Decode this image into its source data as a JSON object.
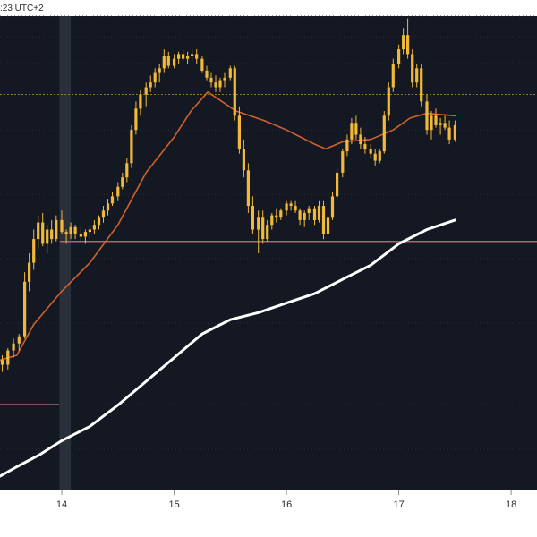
{
  "header": {
    "timestamp_text": ":23 UTC+2"
  },
  "chart_data": {
    "type": "candlestick",
    "title": "",
    "xlabel": "",
    "ylabel": "",
    "xlim": [
      13.45,
      18.23
    ],
    "ylim": [
      0,
      100
    ],
    "x_ticks": [
      {
        "label": "14",
        "value": 14.0
      },
      {
        "label": "15",
        "value": 15.0
      },
      {
        "label": "16",
        "value": 16.0
      },
      {
        "label": "17",
        "value": 17.0
      },
      {
        "label": "18",
        "value": 18.0
      }
    ],
    "colors": {
      "background": "#141823",
      "bar_top_bg": "#ffffff",
      "candle": "#f0b93a",
      "ma_short": "#d2622a",
      "ma_long": "#ffffff",
      "grid": "#2a2f3c",
      "highlight_band": "#2a2f3c",
      "hline_orange_dotted": "#9a7a2a",
      "hline_pink": "#a46a74"
    },
    "highlight_band": [
      13.98,
      14.08
    ],
    "horizontal_lines": [
      {
        "style": "dotted-orange",
        "y": 83.5
      },
      {
        "style": "solid-pink",
        "y": 52.5
      }
    ],
    "series": [
      {
        "kind": "ohlc",
        "points": [
          [
            13.47,
            27.5,
            28.5,
            25.0,
            26.5
          ],
          [
            13.52,
            26.5,
            30.0,
            25.5,
            29.5
          ],
          [
            13.57,
            29.5,
            32.0,
            28.0,
            31.0
          ],
          [
            13.62,
            31.0,
            33.0,
            29.5,
            32.5
          ],
          [
            13.67,
            32.5,
            46.0,
            32.0,
            44.0
          ],
          [
            13.71,
            44.0,
            50.0,
            42.0,
            48.0
          ],
          [
            13.75,
            48.0,
            55.0,
            46.5,
            53.0
          ],
          [
            13.79,
            53.0,
            58.0,
            51.0,
            56.5
          ],
          [
            13.83,
            56.5,
            58.5,
            51.5,
            52.0
          ],
          [
            13.87,
            52.0,
            56.0,
            50.0,
            55.0
          ],
          [
            13.91,
            55.0,
            57.0,
            52.0,
            53.0
          ],
          [
            13.95,
            53.0,
            58.0,
            52.5,
            57.0
          ],
          [
            14.0,
            57.0,
            59.0,
            54.0,
            54.5
          ],
          [
            14.04,
            54.5,
            55.0,
            52.0,
            54.0
          ],
          [
            14.08,
            54.0,
            56.5,
            53.0,
            55.5
          ],
          [
            14.12,
            55.5,
            56.0,
            53.0,
            54.0
          ],
          [
            14.17,
            54.0,
            55.5,
            52.5,
            53.5
          ],
          [
            14.21,
            53.5,
            55.0,
            52.0,
            54.5
          ],
          [
            14.25,
            54.5,
            56.0,
            53.0,
            55.0
          ],
          [
            14.29,
            55.0,
            57.0,
            54.0,
            56.0
          ],
          [
            14.33,
            56.0,
            58.0,
            55.0,
            57.5
          ],
          [
            14.37,
            57.5,
            60.0,
            56.5,
            59.0
          ],
          [
            14.41,
            59.0,
            61.5,
            58.0,
            60.5
          ],
          [
            14.45,
            60.5,
            63.0,
            60.0,
            62.0
          ],
          [
            14.5,
            62.0,
            65.0,
            61.0,
            64.0
          ],
          [
            14.54,
            64.0,
            67.0,
            63.5,
            66.0
          ],
          [
            14.58,
            66.0,
            70.0,
            65.0,
            69.0
          ],
          [
            14.62,
            69.0,
            77.0,
            68.0,
            76.0
          ],
          [
            14.66,
            76.0,
            82.0,
            75.0,
            80.5
          ],
          [
            14.7,
            80.5,
            84.5,
            79.0,
            83.5
          ],
          [
            14.75,
            83.5,
            86.0,
            81.0,
            85.0
          ],
          [
            14.79,
            85.0,
            87.5,
            84.0,
            86.0
          ],
          [
            14.83,
            86.0,
            89.0,
            85.0,
            88.0
          ],
          [
            14.87,
            88.0,
            90.0,
            86.0,
            89.0
          ],
          [
            14.91,
            89.0,
            93.0,
            88.0,
            91.5
          ],
          [
            14.95,
            91.5,
            92.5,
            89.0,
            89.5
          ],
          [
            15.0,
            89.5,
            92.0,
            89.0,
            91.0
          ],
          [
            15.04,
            91.0,
            92.5,
            90.0,
            92.0
          ],
          [
            15.08,
            92.0,
            93.0,
            90.5,
            91.0
          ],
          [
            15.12,
            91.0,
            92.5,
            90.0,
            91.5
          ],
          [
            15.16,
            91.5,
            93.0,
            90.5,
            92.0
          ],
          [
            15.2,
            92.0,
            93.0,
            90.0,
            91.0
          ],
          [
            15.25,
            91.0,
            91.5,
            88.0,
            88.5
          ],
          [
            15.29,
            88.5,
            89.5,
            86.5,
            87.0
          ],
          [
            15.33,
            87.0,
            88.0,
            85.0,
            86.0
          ],
          [
            15.37,
            86.0,
            87.5,
            84.0,
            85.0
          ],
          [
            15.41,
            85.0,
            87.0,
            84.0,
            86.5
          ],
          [
            15.45,
            86.5,
            88.0,
            85.0,
            87.0
          ],
          [
            15.5,
            87.0,
            89.5,
            86.5,
            89.0
          ],
          [
            15.54,
            89.0,
            89.5,
            78.0,
            79.0
          ],
          [
            15.58,
            79.0,
            81.0,
            71.0,
            72.0
          ],
          [
            15.62,
            72.0,
            74.0,
            66.0,
            67.5
          ],
          [
            15.66,
            67.5,
            69.0,
            58.5,
            60.0
          ],
          [
            15.7,
            60.0,
            62.0,
            54.0,
            55.0
          ],
          [
            15.75,
            55.0,
            59.0,
            50.0,
            57.5
          ],
          [
            15.79,
            57.5,
            59.0,
            52.0,
            53.0
          ],
          [
            15.83,
            53.0,
            57.0,
            52.5,
            56.0
          ],
          [
            15.87,
            56.0,
            58.5,
            55.0,
            58.0
          ],
          [
            15.91,
            58.0,
            59.5,
            56.5,
            57.5
          ],
          [
            15.95,
            57.5,
            59.5,
            57.0,
            59.0
          ],
          [
            16.0,
            59.0,
            61.0,
            58.0,
            60.5
          ],
          [
            16.04,
            60.5,
            61.0,
            59.0,
            60.0
          ],
          [
            16.08,
            60.0,
            61.0,
            58.5,
            59.0
          ],
          [
            16.12,
            59.0,
            59.5,
            56.0,
            57.0
          ],
          [
            16.16,
            57.0,
            59.0,
            55.5,
            58.5
          ],
          [
            16.2,
            58.5,
            60.0,
            57.0,
            59.5
          ],
          [
            16.25,
            59.5,
            60.0,
            56.0,
            57.0
          ],
          [
            16.29,
            57.0,
            61.0,
            56.5,
            60.0
          ],
          [
            16.33,
            60.0,
            61.0,
            53.0,
            54.0
          ],
          [
            16.37,
            54.0,
            58.0,
            53.5,
            57.5
          ],
          [
            16.41,
            57.5,
            63.0,
            57.0,
            62.0
          ],
          [
            16.45,
            62.0,
            68.0,
            61.5,
            67.0
          ],
          [
            16.5,
            67.0,
            72.0,
            66.0,
            71.5
          ],
          [
            16.54,
            71.5,
            75.0,
            70.5,
            74.0
          ],
          [
            16.58,
            74.0,
            78.5,
            73.0,
            77.5
          ],
          [
            16.62,
            77.5,
            79.0,
            74.0,
            75.0
          ],
          [
            16.66,
            75.0,
            76.5,
            72.0,
            73.0
          ],
          [
            16.7,
            73.0,
            74.5,
            71.0,
            72.0
          ],
          [
            16.75,
            72.0,
            73.0,
            70.0,
            71.0
          ],
          [
            16.79,
            71.0,
            72.0,
            68.5,
            69.5
          ],
          [
            16.83,
            69.5,
            72.0,
            69.0,
            71.5
          ],
          [
            16.87,
            71.5,
            80.0,
            71.0,
            79.0
          ],
          [
            16.91,
            79.0,
            86.0,
            78.0,
            85.0
          ],
          [
            16.95,
            85.0,
            91.0,
            84.0,
            90.0
          ],
          [
            17.0,
            90.0,
            94.0,
            89.0,
            93.0
          ],
          [
            17.04,
            93.0,
            97.5,
            92.0,
            96.0
          ],
          [
            17.08,
            96.0,
            99.5,
            91.0,
            92.0
          ],
          [
            17.12,
            92.0,
            93.0,
            85.0,
            86.0
          ],
          [
            17.16,
            86.0,
            90.0,
            85.0,
            89.0
          ],
          [
            17.2,
            89.0,
            90.0,
            81.0,
            82.0
          ],
          [
            17.25,
            82.0,
            83.5,
            75.0,
            76.0
          ],
          [
            17.29,
            76.0,
            80.0,
            74.0,
            79.0
          ],
          [
            17.33,
            79.0,
            80.5,
            76.5,
            77.0
          ],
          [
            17.37,
            77.0,
            78.5,
            75.0,
            77.5
          ],
          [
            17.41,
            77.5,
            79.0,
            76.0,
            76.5
          ],
          [
            17.45,
            76.5,
            78.0,
            73.0,
            74.0
          ],
          [
            17.5,
            74.0,
            78.0,
            73.5,
            77.0
          ]
        ]
      },
      {
        "kind": "line",
        "role": "ma_short",
        "x": [
          13.45,
          13.6,
          13.75,
          14.0,
          14.25,
          14.5,
          14.75,
          15.0,
          15.15,
          15.3,
          15.55,
          15.8,
          16.0,
          16.25,
          16.35,
          16.5,
          16.75,
          16.95,
          17.1,
          17.25,
          17.5
        ],
        "y": [
          27.5,
          28.5,
          35.0,
          42.0,
          48.0,
          56.0,
          67.0,
          74.5,
          80.0,
          84.0,
          80.0,
          78.0,
          76.0,
          73.0,
          72.0,
          73.5,
          74.0,
          76.0,
          78.5,
          79.5,
          79.0
        ]
      },
      {
        "kind": "line",
        "role": "ma_long",
        "x": [
          13.45,
          13.6,
          13.8,
          14.0,
          14.25,
          14.5,
          14.75,
          15.0,
          15.25,
          15.5,
          15.75,
          16.0,
          16.25,
          16.5,
          16.75,
          17.0,
          17.25,
          17.5
        ],
        "y": [
          3.0,
          5.0,
          7.5,
          10.5,
          13.5,
          18.0,
          23.0,
          28.0,
          33.0,
          36.0,
          37.5,
          39.5,
          41.5,
          44.5,
          47.5,
          52.0,
          55.0,
          57.0
        ]
      }
    ]
  }
}
